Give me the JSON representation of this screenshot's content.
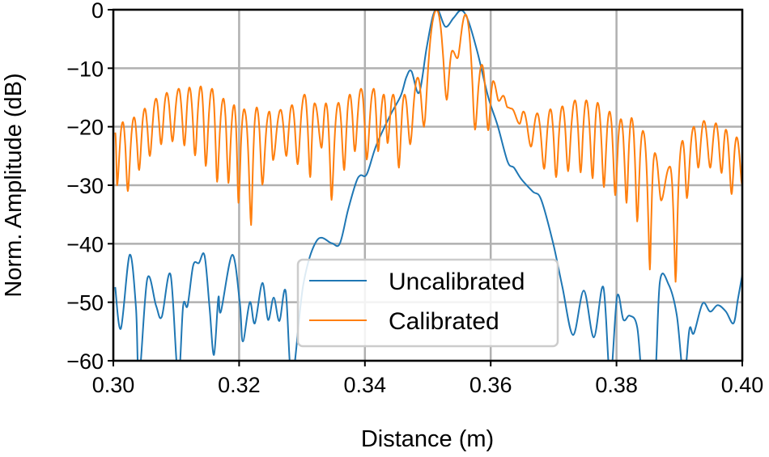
{
  "chart_data": {
    "type": "line",
    "title": "",
    "xlabel": "Distance (m)",
    "ylabel": "Norm. Amplitude (dB)",
    "xlim": [
      0.3,
      0.4
    ],
    "ylim": [
      -60,
      0
    ],
    "xticks": [
      "0.30",
      "0.32",
      "0.34",
      "0.36",
      "0.38",
      "0.40"
    ],
    "yticks": [
      "0",
      "−10",
      "−20",
      "−30",
      "−40",
      "−50",
      "−60"
    ],
    "grid": true,
    "legend_placement": "lower-center",
    "series": [
      {
        "name": "Uncalibrated",
        "color": "#1f77b4",
        "x": [
          0.3003,
          0.3012,
          0.3026,
          0.3036,
          0.3041,
          0.3054,
          0.3068,
          0.3077,
          0.3091,
          0.3103,
          0.3111,
          0.3118,
          0.3127,
          0.3136,
          0.3145,
          0.3153,
          0.316,
          0.3167,
          0.3171,
          0.3189,
          0.3201,
          0.3206,
          0.3217,
          0.3225,
          0.3237,
          0.3246,
          0.3255,
          0.3264,
          0.3274,
          0.3284,
          0.3302,
          0.3324,
          0.3347,
          0.336,
          0.3373,
          0.3386,
          0.3393,
          0.3403,
          0.3418,
          0.344,
          0.3457,
          0.3466,
          0.3474,
          0.3486,
          0.3498,
          0.3508,
          0.3516,
          0.3528,
          0.3541,
          0.3553,
          0.3564,
          0.3579,
          0.3596,
          0.3611,
          0.3627,
          0.3637,
          0.3649,
          0.3667,
          0.368,
          0.3699,
          0.3714,
          0.3731,
          0.3748,
          0.3764,
          0.3779,
          0.379,
          0.3801,
          0.3811,
          0.3821,
          0.3833,
          0.3843,
          0.386,
          0.3869,
          0.3883,
          0.3896,
          0.3907,
          0.3916,
          0.3923,
          0.3937,
          0.3949,
          0.3961,
          0.3974,
          0.3986,
          0.3993,
          0.4
        ],
        "y": [
          -47.4,
          -54.5,
          -41.9,
          -50.9,
          -63,
          -46,
          -50.6,
          -52.5,
          -45.3,
          -63,
          -50.6,
          -50.6,
          -43.7,
          -43.3,
          -42,
          -50.9,
          -59,
          -49.2,
          -51.6,
          -41.9,
          -50,
          -56.7,
          -50,
          -53.6,
          -46.7,
          -53,
          -49.2,
          -53.2,
          -48.1,
          -63,
          -47,
          -39.4,
          -39.9,
          -40,
          -34.3,
          -29.5,
          -28.3,
          -28.1,
          -23.2,
          -18.1,
          -14.7,
          -11.5,
          -10.5,
          -14.2,
          -6.6,
          -1.1,
          0,
          -2.9,
          -1.4,
          -0.1,
          -1.8,
          -7.3,
          -14.9,
          -19.8,
          -26,
          -27,
          -29,
          -31.1,
          -32.4,
          -39.8,
          -47.4,
          -55.6,
          -48,
          -56,
          -47.4,
          -63,
          -49,
          -53,
          -52.3,
          -54.3,
          -65,
          -65,
          -46.5,
          -47,
          -52.3,
          -63,
          -54.6,
          -55.3,
          -50.2,
          -51.6,
          -50.5,
          -51.6,
          -53.6,
          -49.5,
          -45.3
        ]
      },
      {
        "name": "Calibrated",
        "color": "#ff7f0e",
        "x": [
          0.3003,
          0.3006,
          0.3015,
          0.3023,
          0.3033,
          0.3041,
          0.305,
          0.3058,
          0.3068,
          0.3076,
          0.3085,
          0.3094,
          0.3104,
          0.3113,
          0.3121,
          0.313,
          0.3139,
          0.3147,
          0.3157,
          0.3165,
          0.3175,
          0.3183,
          0.3192,
          0.3199,
          0.3208,
          0.3219,
          0.3228,
          0.3237,
          0.3248,
          0.3254,
          0.3266,
          0.3275,
          0.3284,
          0.3293,
          0.3304,
          0.3313,
          0.332,
          0.3331,
          0.3338,
          0.3347,
          0.3358,
          0.3367,
          0.3376,
          0.3384,
          0.3394,
          0.3403,
          0.3414,
          0.3421,
          0.343,
          0.3436,
          0.3445,
          0.3454,
          0.3463,
          0.3472,
          0.3484,
          0.3494,
          0.3514,
          0.353,
          0.3539,
          0.3547,
          0.356,
          0.3575,
          0.3586,
          0.3596,
          0.3604,
          0.3613,
          0.362,
          0.3627,
          0.3633,
          0.3646,
          0.3652,
          0.3664,
          0.3674,
          0.3685,
          0.3695,
          0.3704,
          0.3714,
          0.3723,
          0.3734,
          0.3743,
          0.3752,
          0.3762,
          0.377,
          0.378,
          0.3789,
          0.3798,
          0.3807,
          0.3816,
          0.3824,
          0.3833,
          0.3842,
          0.3853,
          0.3861,
          0.3871,
          0.3885,
          0.3894,
          0.3905,
          0.3912,
          0.3923,
          0.393,
          0.3939,
          0.3949,
          0.3958,
          0.3967,
          0.3974,
          0.3983,
          0.3991,
          0.4
        ],
        "y": [
          -21,
          -30,
          -19.2,
          -31,
          -18.4,
          -27.4,
          -16.9,
          -25,
          -15.2,
          -23,
          -14.2,
          -22.5,
          -13.5,
          -23.2,
          -13.3,
          -24.9,
          -13.1,
          -26.7,
          -13.5,
          -29.4,
          -15.2,
          -29.6,
          -16.3,
          -33,
          -17,
          -36.8,
          -16.7,
          -29.9,
          -17.4,
          -25.7,
          -17.1,
          -25,
          -16.3,
          -26.4,
          -14.5,
          -28.6,
          -16,
          -23.6,
          -16,
          -32.5,
          -15.9,
          -27.4,
          -14.5,
          -24.2,
          -13.5,
          -25.6,
          -13.5,
          -24.2,
          -14.5,
          -22.8,
          -14.5,
          -27,
          -14.5,
          -23,
          -11.6,
          -20,
          0,
          -15.4,
          -7,
          -8.3,
          -0.8,
          -20.5,
          -9.4,
          -20.6,
          -12.2,
          -15.6,
          -14.7,
          -16.7,
          -16.9,
          -19.5,
          -17.4,
          -23.4,
          -17.7,
          -27.2,
          -17,
          -28.6,
          -16.5,
          -27.6,
          -15.5,
          -27.8,
          -15.5,
          -28.8,
          -15.9,
          -30.3,
          -17.4,
          -31.7,
          -18.7,
          -33,
          -18.5,
          -36.2,
          -20.7,
          -44.4,
          -24.5,
          -32.6,
          -26.8,
          -46.5,
          -22.4,
          -32.2,
          -20,
          -27,
          -19,
          -27,
          -19.4,
          -27.9,
          -20.5,
          -31.5,
          -21.8,
          -30
        ]
      }
    ]
  }
}
